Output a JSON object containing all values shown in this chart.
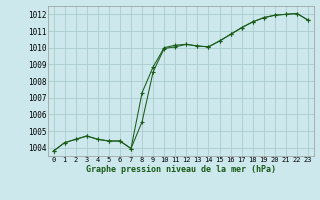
{
  "title": "Graphe pression niveau de la mer (hPa)",
  "background_color": "#cce8ec",
  "grid_color": "#aacccc",
  "line_color": "#1a5c1a",
  "x_labels": [
    "0",
    "1",
    "2",
    "3",
    "4",
    "5",
    "6",
    "7",
    "8",
    "9",
    "10",
    "11",
    "12",
    "13",
    "14",
    "15",
    "16",
    "17",
    "18",
    "19",
    "20",
    "21",
    "22",
    "23"
  ],
  "ylim": [
    1003.5,
    1012.5
  ],
  "xlim": [
    -0.5,
    23.5
  ],
  "yticks": [
    1004,
    1005,
    1006,
    1007,
    1008,
    1009,
    1010,
    1011,
    1012
  ],
  "series1_x": [
    0,
    1,
    2,
    3,
    4,
    5,
    6,
    7,
    8,
    9,
    10,
    11,
    12,
    13,
    14,
    15,
    16,
    17,
    18,
    19,
    20,
    21,
    22,
    23
  ],
  "series1_y": [
    1003.8,
    1004.3,
    1004.5,
    1004.7,
    1004.5,
    1004.4,
    1004.4,
    1003.95,
    1005.55,
    1008.55,
    1009.95,
    1010.05,
    1010.2,
    1010.1,
    1010.05,
    1010.4,
    1010.8,
    1011.2,
    1011.55,
    1011.8,
    1011.95,
    1012.0,
    1012.05,
    1011.65
  ],
  "series2_x": [
    0,
    1,
    2,
    3,
    4,
    5,
    6,
    7,
    8,
    9,
    10,
    11,
    12,
    13,
    14,
    15,
    16,
    17,
    18,
    19,
    20,
    21,
    22,
    23
  ],
  "series2_y": [
    1003.8,
    1004.3,
    1004.5,
    1004.7,
    1004.5,
    1004.4,
    1004.4,
    1003.95,
    1007.3,
    1008.85,
    1010.0,
    1010.15,
    1010.2,
    1010.1,
    1010.05,
    1010.4,
    1010.8,
    1011.2,
    1011.55,
    1011.8,
    1011.95,
    1012.0,
    1012.05,
    1011.65
  ]
}
